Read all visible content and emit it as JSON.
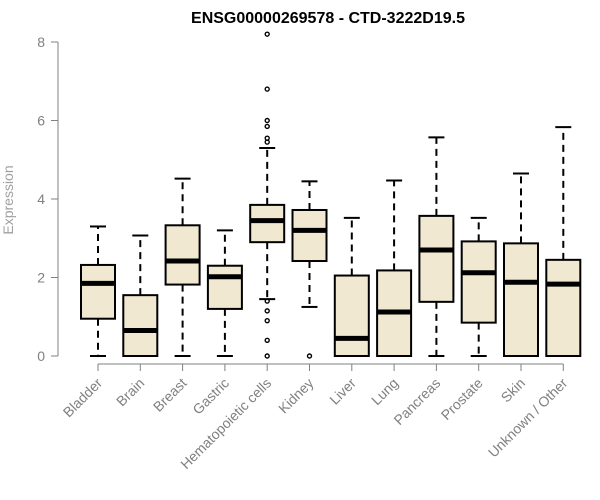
{
  "chart_data": {
    "type": "boxplot",
    "title": "ENSG00000269578 - CTD-3222D19.5",
    "xlabel": "",
    "ylabel": "Expression",
    "ylim": [
      0,
      8
    ],
    "yticks": [
      0,
      2,
      4,
      6,
      8
    ],
    "box_color": "#f0e8d0",
    "categories": [
      "Bladder",
      "Brain",
      "Breast",
      "Gastric",
      "Hematopoietic cells",
      "Kidney",
      "Liver",
      "Lung",
      "Pancreas",
      "Prostate",
      "Skin",
      "Unknown / Other"
    ],
    "boxes": [
      {
        "min": 0,
        "q1": 0.95,
        "median": 1.85,
        "q3": 2.32,
        "max": 3.3,
        "outliers": []
      },
      {
        "min": 0,
        "q1": 0,
        "median": 0.65,
        "q3": 1.55,
        "max": 3.07,
        "outliers": []
      },
      {
        "min": 0,
        "q1": 1.82,
        "median": 2.42,
        "q3": 3.33,
        "max": 4.52,
        "outliers": []
      },
      {
        "min": 0,
        "q1": 1.2,
        "median": 2.02,
        "q3": 2.3,
        "max": 3.2,
        "outliers": []
      },
      {
        "min": 1.45,
        "q1": 2.9,
        "median": 3.45,
        "q3": 3.85,
        "max": 5.3,
        "outliers": [
          0,
          0.4,
          0.9,
          1.15,
          1.4,
          5.45,
          5.55,
          5.85,
          6.0,
          6.8,
          8.2
        ]
      },
      {
        "min": 1.25,
        "q1": 2.42,
        "median": 3.2,
        "q3": 3.72,
        "max": 4.45,
        "outliers": [
          0
        ]
      },
      {
        "min": 0,
        "q1": 0,
        "median": 0.45,
        "q3": 2.05,
        "max": 3.52,
        "outliers": []
      },
      {
        "min": 0,
        "q1": 0,
        "median": 1.12,
        "q3": 2.18,
        "max": 4.47,
        "outliers": []
      },
      {
        "min": 0,
        "q1": 1.38,
        "median": 2.7,
        "q3": 3.57,
        "max": 5.57,
        "outliers": []
      },
      {
        "min": 0,
        "q1": 0.85,
        "median": 2.12,
        "q3": 2.92,
        "max": 3.52,
        "outliers": []
      },
      {
        "min": 0,
        "q1": 0,
        "median": 1.88,
        "q3": 2.87,
        "max": 4.65,
        "outliers": []
      },
      {
        "min": 0,
        "q1": 0,
        "median": 1.83,
        "q3": 2.45,
        "max": 5.83,
        "outliers": []
      }
    ]
  }
}
